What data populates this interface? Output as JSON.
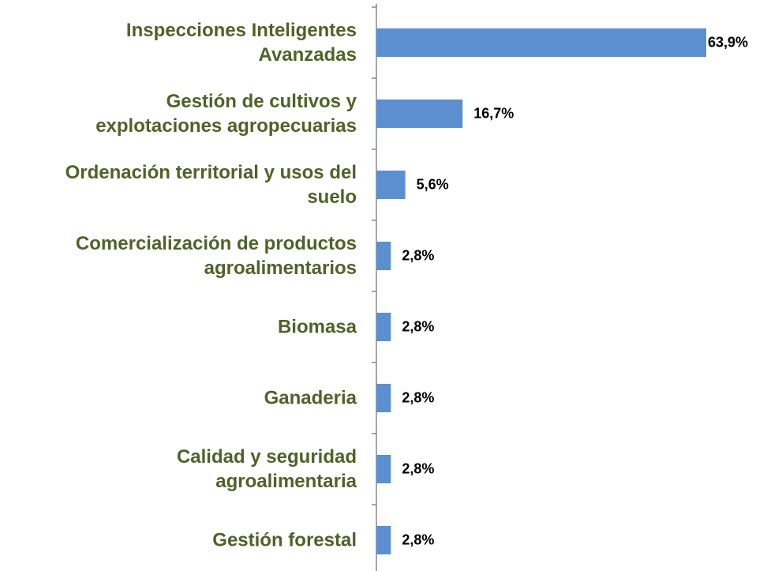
{
  "chart_data": {
    "type": "barh",
    "categories": [
      "Inspecciones Inteligentes\nAvanzadas",
      "Gestión de cultivos y\nexplotaciones agropecuarias",
      "Ordenación territorial y usos del\nsuelo",
      "Comercialización de productos\nagroalimentarios",
      "Biomasa",
      "Ganaderia",
      "Calidad y seguridad\nagroalimentaria",
      "Gestión forestal"
    ],
    "values": [
      63.9,
      16.7,
      5.6,
      2.8,
      2.8,
      2.8,
      2.8,
      2.8
    ],
    "value_labels": [
      "63,9%",
      "16,7%",
      "5,6%",
      "2,8%",
      "2,8%",
      "2,8%",
      "2,8%",
      "2,8%"
    ],
    "color": "#5b8fd0"
  }
}
